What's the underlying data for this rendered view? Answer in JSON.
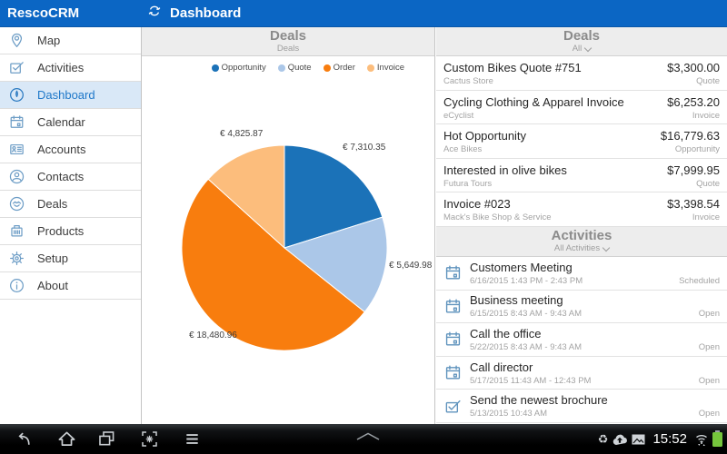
{
  "topbar": {
    "brand": "RescoCRM",
    "title": "Dashboard"
  },
  "sidebar": {
    "items": [
      {
        "label": "Map",
        "icon": "map-pin-icon"
      },
      {
        "label": "Activities",
        "icon": "activities-check-icon"
      },
      {
        "label": "Dashboard",
        "icon": "dashboard-gauge-icon",
        "selected": true
      },
      {
        "label": "Calendar",
        "icon": "calendar-icon"
      },
      {
        "label": "Accounts",
        "icon": "accounts-card-icon"
      },
      {
        "label": "Contacts",
        "icon": "contacts-person-icon"
      },
      {
        "label": "Deals",
        "icon": "deals-handshake-icon"
      },
      {
        "label": "Products",
        "icon": "products-box-icon"
      },
      {
        "label": "Setup",
        "icon": "setup-gear-icon"
      },
      {
        "label": "About",
        "icon": "about-info-icon"
      }
    ]
  },
  "chart_panel": {
    "title": "Deals",
    "subtitle": "Deals"
  },
  "chart_data": {
    "type": "pie",
    "title": "Deals",
    "legend": [
      "Opportunity",
      "Quote",
      "Order",
      "Invoice"
    ],
    "values": [
      7310.35,
      5649.98,
      18480.96,
      4825.87
    ],
    "value_labels": [
      "€ 7,310.35",
      "€ 5,649.98",
      "€ 18,480.96",
      "€ 4,825.87"
    ],
    "colors": [
      "#1b72b8",
      "#abc7e8",
      "#f87d0e",
      "#fcbd7c"
    ],
    "legend_position": "top-right",
    "start_angle": "12-oclock",
    "direction": "clockwise"
  },
  "deals_panel": {
    "title": "Deals",
    "filter": "All",
    "items": [
      {
        "name": "Custom Bikes Quote #751",
        "account": "Cactus Store",
        "amount": "$3,300.00",
        "type": "Quote"
      },
      {
        "name": "Cycling Clothing & Apparel Invoice",
        "account": "eCyclist",
        "amount": "$6,253.20",
        "type": "Invoice"
      },
      {
        "name": "Hot Opportunity",
        "account": "Ace Bikes",
        "amount": "$16,779.63",
        "type": "Opportunity"
      },
      {
        "name": "Interested in olive bikes",
        "account": "Futura Tours",
        "amount": "$7,999.95",
        "type": "Quote"
      },
      {
        "name": "Invoice #023",
        "account": "Mack's Bike Shop & Service",
        "amount": "$3,398.54",
        "type": "Invoice"
      }
    ]
  },
  "activities_panel": {
    "title": "Activities",
    "filter": "All Activities",
    "items": [
      {
        "title": "Customers Meeting",
        "time": "6/16/2015 1:43 PM - 2:43 PM",
        "status": "Scheduled",
        "icon": "calendar-icon"
      },
      {
        "title": "Business meeting",
        "time": "6/15/2015 8:43 AM - 9:43 AM",
        "status": "Open",
        "icon": "calendar-icon"
      },
      {
        "title": "Call the office",
        "time": "5/22/2015 8:43 AM - 9:43 AM",
        "status": "Open",
        "icon": "calendar-icon"
      },
      {
        "title": "Call director",
        "time": "5/17/2015 11:43 AM - 12:43 PM",
        "status": "Open",
        "icon": "calendar-icon"
      },
      {
        "title": "Send the newest brochure",
        "time": "5/13/2015 10:43 AM",
        "status": "Open",
        "icon": "task-check-icon"
      }
    ]
  },
  "navbar": {
    "time": "15:52"
  }
}
